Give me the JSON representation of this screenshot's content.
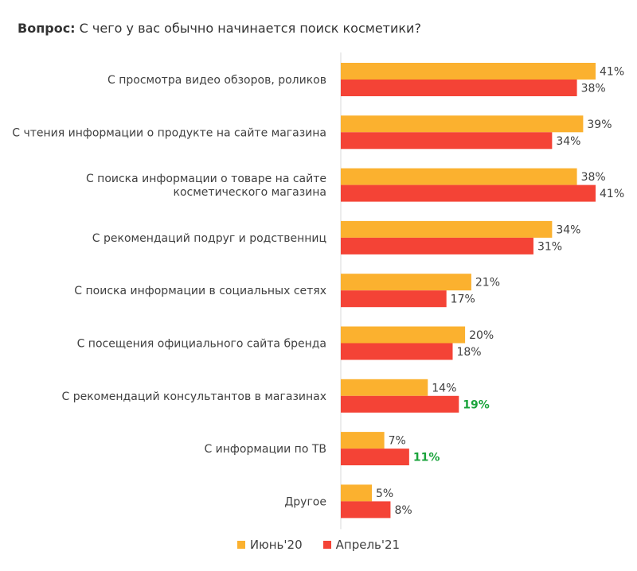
{
  "question": {
    "prefix": "Вопрос:",
    "text": "С чего у вас обычно начинается поиск косметики?"
  },
  "colors": {
    "june20": "#fbb12f",
    "april21": "#f44336",
    "highlight": "#1aa33b",
    "axis": "#d9d9d9"
  },
  "chart_data": {
    "type": "bar",
    "orientation": "horizontal",
    "categories": [
      [
        "С просмотра видео обзоров, роликов"
      ],
      [
        "С чтения информации о продукте на сайте магазина"
      ],
      [
        "С поиска информации о товаре на сайте",
        "косметического магазина"
      ],
      [
        "С рекомендаций подруг и родственниц"
      ],
      [
        "С поиска информации в социальных сетях"
      ],
      [
        "С посещения официального сайта бренда"
      ],
      [
        "С рекомендаций консультантов в магазинах"
      ],
      [
        "С информации по ТВ"
      ],
      [
        "Другое"
      ]
    ],
    "series": [
      {
        "name": "Июнь'20",
        "values": [
          41,
          39,
          38,
          34,
          21,
          20,
          14,
          7,
          5
        ]
      },
      {
        "name": "Апрель'21",
        "values": [
          38,
          34,
          41,
          31,
          17,
          18,
          19,
          11,
          8
        ],
        "highlighted_labels": [
          false,
          false,
          false,
          false,
          false,
          false,
          true,
          true,
          false
        ]
      }
    ],
    "value_suffix": "%",
    "xlim": [
      0,
      45
    ],
    "legend_position": "bottom-center",
    "grid": false
  }
}
